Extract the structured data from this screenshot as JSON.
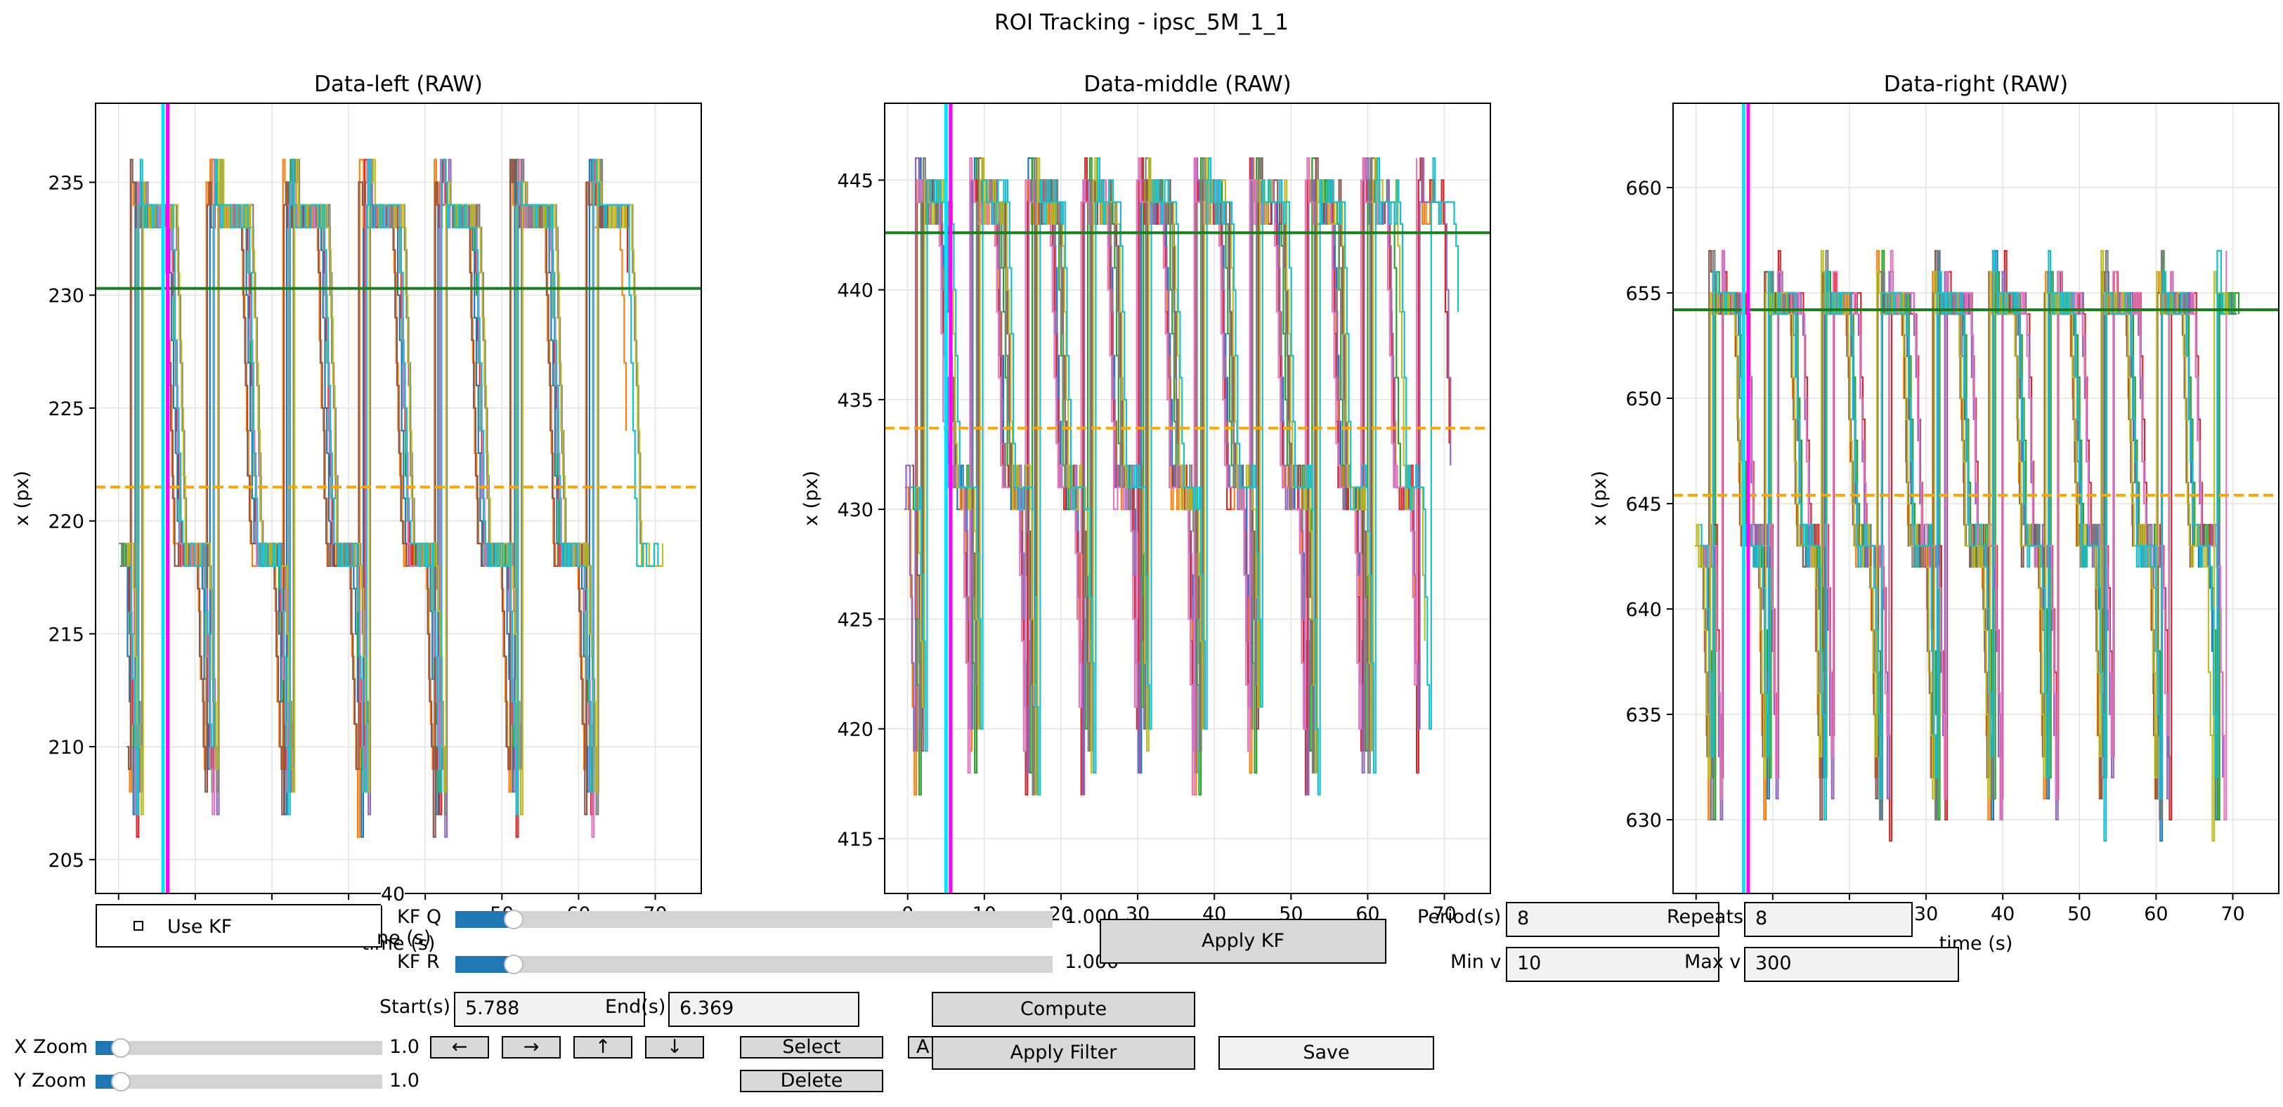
{
  "figure": {
    "title": "ROI Tracking - ipsc_5M_1_1"
  },
  "colors": {
    "green_line": "#1a7f1a",
    "orange_dashed": "#ffa500",
    "cyan_line": "#00e5ff",
    "magenta_line": "#ff00ff",
    "palette": [
      "#1f77b4",
      "#ff7f0e",
      "#2ca02c",
      "#d62728",
      "#9467bd",
      "#8c564b",
      "#e377c2",
      "#7f7f7f",
      "#bcbd22",
      "#17becf"
    ]
  },
  "chart_data": [
    {
      "type": "line",
      "title": "Data-left (RAW)",
      "xlabel": "time (s)",
      "ylabel": "x (px)",
      "xlim": [
        -3,
        76
      ],
      "ylim": [
        203.5,
        238.5
      ],
      "xticks": [
        "0",
        "10",
        "20",
        "30",
        "40",
        "50",
        "60",
        "70"
      ],
      "xtick_values": [
        0,
        10,
        20,
        30,
        40,
        50,
        60,
        70
      ],
      "yticks": [
        "205",
        "210",
        "215",
        "220",
        "225",
        "230",
        "235"
      ],
      "ytick_values": [
        205,
        210,
        215,
        220,
        225,
        230,
        235
      ],
      "grid": true,
      "hlines": [
        {
          "y": 230.3,
          "style": "solid",
          "color": "green"
        },
        {
          "y": 221.5,
          "style": "dashed",
          "color": "orange"
        }
      ],
      "vlines": [
        {
          "x": 5.8,
          "color": "cyan"
        },
        {
          "x": 6.4,
          "color": "magenta"
        }
      ],
      "high": 233.8,
      "low": 218.6,
      "cycle_period": 9.9,
      "cycle_starts": [
        2.5,
        12.4,
        22.3,
        32.2,
        42.1,
        52.0,
        61.8
      ],
      "dip_min": 206.5,
      "end_time": 72
    },
    {
      "type": "line",
      "title": "Data-middle (RAW)",
      "xlabel": "time (s)",
      "ylabel": "x (px)",
      "xlim": [
        -3,
        76
      ],
      "ylim": [
        412.5,
        448.5
      ],
      "xticks": [
        "0",
        "10",
        "20",
        "30",
        "40",
        "50",
        "60",
        "70"
      ],
      "xtick_values": [
        0,
        10,
        20,
        30,
        40,
        50,
        60,
        70
      ],
      "yticks": [
        "415",
        "420",
        "425",
        "430",
        "435",
        "440",
        "445"
      ],
      "ytick_values": [
        415,
        420,
        425,
        430,
        435,
        440,
        445
      ],
      "grid": true,
      "hlines": [
        {
          "y": 442.6,
          "style": "solid",
          "color": "green"
        },
        {
          "y": 433.7,
          "style": "dashed",
          "color": "orange"
        }
      ],
      "vlines": [
        {
          "x": 5.0,
          "color": "cyan"
        },
        {
          "x": 5.6,
          "color": "magenta"
        }
      ],
      "high": 444.0,
      "low": 431.0,
      "cycle_period": 7.3,
      "cycle_starts": [
        1.5,
        8.8,
        16.1,
        23.4,
        30.7,
        38.0,
        45.3,
        52.6,
        59.9
      ],
      "dip_min": 417.0,
      "end_time": 72
    },
    {
      "type": "line",
      "title": "Data-right (RAW)",
      "xlabel": "time (s)",
      "ylabel": "x (px)",
      "xlim": [
        -3,
        76
      ],
      "ylim": [
        626.5,
        664.0
      ],
      "xticks": [
        "0",
        "10",
        "20",
        "30",
        "40",
        "50",
        "60",
        "70"
      ],
      "xtick_values": [
        0,
        10,
        20,
        30,
        40,
        50,
        60,
        70
      ],
      "yticks": [
        "630",
        "635",
        "640",
        "645",
        "650",
        "655",
        "660"
      ],
      "ytick_values": [
        630,
        635,
        640,
        645,
        650,
        655,
        660
      ],
      "grid": true,
      "hlines": [
        {
          "y": 654.2,
          "style": "solid",
          "color": "green"
        },
        {
          "y": 645.4,
          "style": "dashed",
          "color": "orange"
        }
      ],
      "vlines": [
        {
          "x": 6.2,
          "color": "cyan"
        },
        {
          "x": 6.8,
          "color": "magenta"
        }
      ],
      "high": 654.5,
      "low": 643.0,
      "cycle_period": 7.3,
      "cycle_starts": [
        2.5,
        9.8,
        17.1,
        24.4,
        31.7,
        39.0,
        46.3,
        53.6,
        60.9
      ],
      "dip_min": 629.5,
      "end_time": 72
    }
  ],
  "controls": {
    "use_kf": {
      "label": "Use KF",
      "checked": false
    },
    "kf_q": {
      "label": "KF Q",
      "value_text": "1.000",
      "fraction": 0.1
    },
    "kf_r": {
      "label": "KF R",
      "value_text": "1.000",
      "fraction": 0.1
    },
    "apply_kf": "Apply KF",
    "period": {
      "label": "Period(s)",
      "value": "8"
    },
    "repeats": {
      "label": "Repeats",
      "value": "8"
    },
    "min_v": {
      "label": "Min v",
      "value": "10"
    },
    "max_v": {
      "label": "Max v",
      "value": "300"
    },
    "start": {
      "label": "Start(s)",
      "value": "5.788"
    },
    "end": {
      "label": "End(s)",
      "value": "6.369"
    },
    "compute": "Compute",
    "apply_filter": "Apply Filter",
    "save": "Save",
    "x_zoom": {
      "label": "X Zoom",
      "value_text": "1.0",
      "fraction": 0.07
    },
    "y_zoom": {
      "label": "Y Zoom",
      "value_text": "1.0",
      "fraction": 0.07
    },
    "arrows": {
      "left": "←",
      "right": "→",
      "up": "↑",
      "down": "↓"
    },
    "select": "Select",
    "delete": "Delete",
    "hidden_button_glyph": "A",
    "behind_overlap": {
      "xlabel_fragment": "ne (s)",
      "tick_40": "40"
    }
  }
}
